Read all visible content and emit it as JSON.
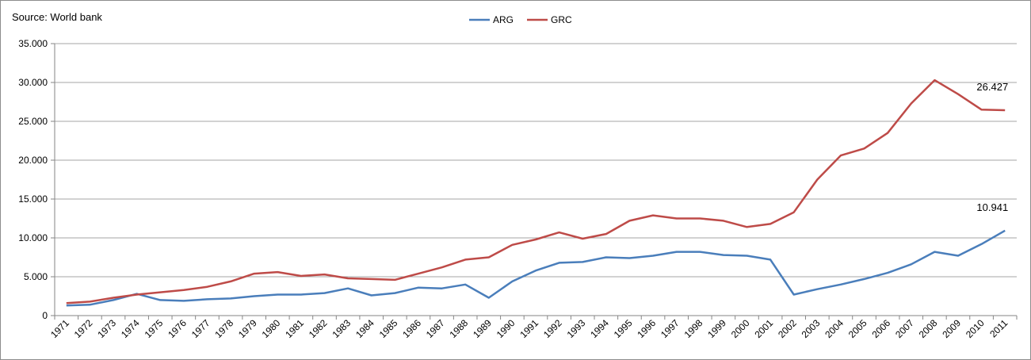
{
  "source_note": "Source: World bank",
  "chart_data": {
    "type": "line",
    "title": "",
    "xlabel": "",
    "ylabel": "",
    "ylim": [
      0,
      35000
    ],
    "ytick_labels": [
      "0",
      "5.000",
      "10.000",
      "15.000",
      "20.000",
      "25.000",
      "30.000",
      "35.000"
    ],
    "grid": "horizontal",
    "legend_position": "top-center",
    "categories": [
      "1971",
      "1972",
      "1973",
      "1974",
      "1975",
      "1976",
      "1977",
      "1978",
      "1979",
      "1980",
      "1981",
      "1982",
      "1983",
      "1984",
      "1985",
      "1986",
      "1987",
      "1988",
      "1989",
      "1990",
      "1991",
      "1992",
      "1993",
      "1994",
      "1995",
      "1996",
      "1997",
      "1998",
      "1999",
      "2000",
      "2001",
      "2002",
      "2003",
      "2004",
      "2005",
      "2006",
      "2007",
      "2008",
      "2009",
      "2010",
      "2011"
    ],
    "series": [
      {
        "name": "ARG",
        "color": "#4a7ebb",
        "values": [
          1300,
          1400,
          2000,
          2800,
          2000,
          1900,
          2100,
          2200,
          2500,
          2700,
          2700,
          2900,
          3500,
          2600,
          2900,
          3600,
          3500,
          4000,
          2300,
          4400,
          5800,
          6800,
          6900,
          7500,
          7400,
          7700,
          8200,
          8200,
          7800,
          7700,
          7200,
          2700,
          3400,
          4000,
          4700,
          5500,
          6600,
          8200,
          7700,
          9200,
          10941
        ],
        "end_label": "10.941"
      },
      {
        "name": "GRC",
        "color": "#be4b48",
        "values": [
          1600,
          1800,
          2300,
          2700,
          3000,
          3300,
          3700,
          4400,
          5400,
          5600,
          5100,
          5300,
          4800,
          4700,
          4600,
          5400,
          6200,
          7200,
          7500,
          9100,
          9800,
          10700,
          9900,
          10500,
          12200,
          12900,
          12500,
          12500,
          12200,
          11400,
          11800,
          13300,
          17500,
          20600,
          21500,
          23500,
          27300,
          30300,
          28500,
          26500,
          26427
        ],
        "end_label": "26.427"
      }
    ]
  }
}
